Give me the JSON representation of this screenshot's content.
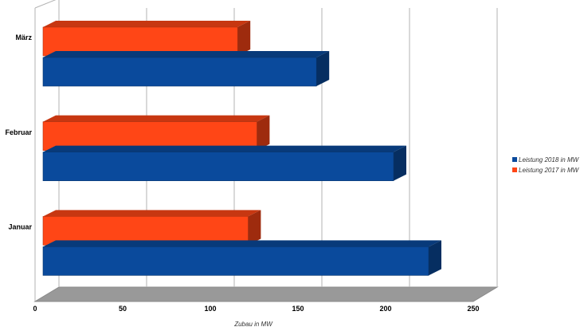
{
  "chart_data": {
    "type": "bar",
    "orientation": "horizontal",
    "style": "3d",
    "categories": [
      "März",
      "Februar",
      "Januar"
    ],
    "series": [
      {
        "name": "Leistung 2018 in MW",
        "color": "#0a4a9c",
        "values": [
          156,
          200,
          220
        ]
      },
      {
        "name": "Leistung 2017 in MW",
        "color": "#ff4616",
        "values": [
          111,
          122,
          117
        ]
      }
    ],
    "xlabel": "Zubau in MW",
    "ylabel": "",
    "xlim": [
      0,
      250
    ],
    "xticks": [
      0,
      50,
      100,
      150,
      200,
      250
    ],
    "grid": true,
    "legend_position": "right"
  }
}
